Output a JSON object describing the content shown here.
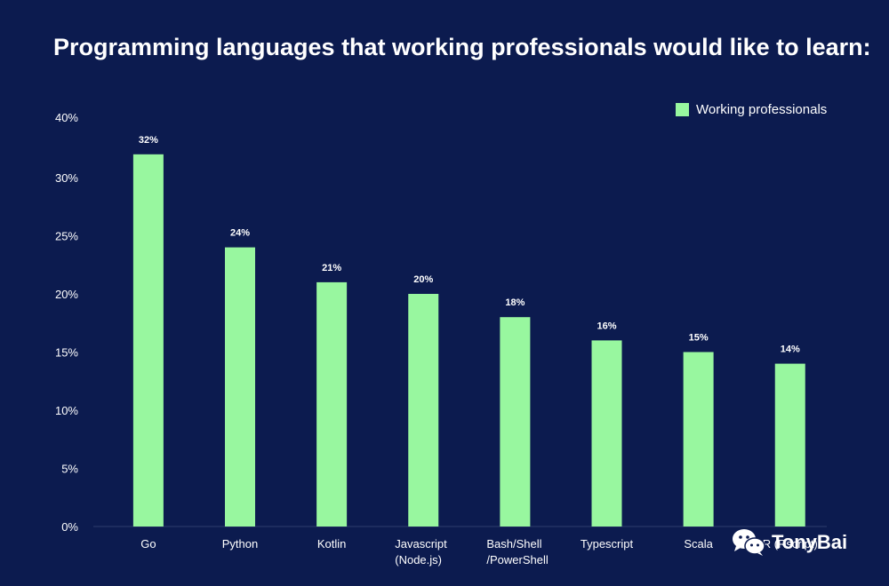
{
  "chart_data": {
    "type": "bar",
    "title": "Programming languages that working professionals would like to learn:",
    "categories": [
      "Go",
      "Python",
      "Kotlin",
      "Javascript\n(Node.js)",
      "Bash/Shell\n/PowerShell",
      "Typescript",
      "Scala",
      "R (Rscript)"
    ],
    "series": [
      {
        "name": "Working professionals",
        "values": [
          32,
          24,
          21,
          20,
          18,
          16,
          15,
          14
        ],
        "labels": [
          "32%",
          "24%",
          "21%",
          "20%",
          "18%",
          "16%",
          "15%",
          "14%"
        ]
      }
    ],
    "yticks": [
      0,
      5,
      10,
      15,
      20,
      25,
      30,
      40
    ],
    "ytick_labels": [
      "0%",
      "5%",
      "10%",
      "15%",
      "20%",
      "25%",
      "30%",
      "40%"
    ],
    "ylim": [
      0,
      40
    ],
    "xlabel": "",
    "ylabel": "",
    "grid": false,
    "legend_position": "top-right",
    "colors": {
      "background": "#0c1b4f",
      "bar": "#98f79f",
      "text": "#ffffff",
      "axis": "#2e3e6e"
    }
  },
  "watermark": {
    "text": "TonyBai",
    "icon": "wechat-icon"
  }
}
